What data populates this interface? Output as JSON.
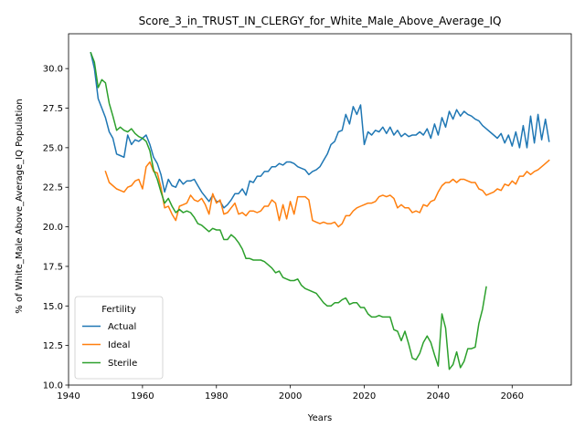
{
  "chart_data": {
    "type": "line",
    "title": "Score_3_in_TRUST_IN_CLERGY_for_White_Male_Above_Average_IQ",
    "xlabel": "Years",
    "ylabel": "% of White_Male Above_Average_IQ Population",
    "xlim": [
      1940,
      2076
    ],
    "ylim": [
      10,
      32.2
    ],
    "xticks": [
      1940,
      1960,
      1980,
      2000,
      2020,
      2040,
      2060
    ],
    "yticks": [
      10.0,
      12.5,
      15.0,
      17.5,
      20.0,
      22.5,
      25.0,
      27.5,
      30.0
    ],
    "grid": false,
    "legend": {
      "title": "Fertility",
      "placement": "bottom-left"
    },
    "series": [
      {
        "name": "Actual",
        "color": "#1f77b4",
        "x": [
          1946,
          1947,
          1948,
          1949,
          1950,
          1951,
          1952,
          1953,
          1954,
          1955,
          1956,
          1957,
          1958,
          1959,
          1960,
          1961,
          1962,
          1963,
          1964,
          1965,
          1966,
          1967,
          1968,
          1969,
          1970,
          1971,
          1972,
          1973,
          1974,
          1975,
          1976,
          1977,
          1978,
          1979,
          1980,
          1981,
          1982,
          1983,
          1984,
          1985,
          1986,
          1987,
          1988,
          1989,
          1990,
          1991,
          1992,
          1993,
          1994,
          1995,
          1996,
          1997,
          1998,
          1999,
          2000,
          2001,
          2002,
          2003,
          2004,
          2005,
          2006,
          2007,
          2008,
          2009,
          2010,
          2011,
          2012,
          2013,
          2014,
          2015,
          2016,
          2017,
          2018,
          2019,
          2020,
          2021,
          2022,
          2023,
          2024,
          2025,
          2026,
          2027,
          2028,
          2029,
          2030,
          2031,
          2032,
          2033,
          2034,
          2035,
          2036,
          2037,
          2038,
          2039,
          2040,
          2041,
          2042,
          2043,
          2044,
          2045,
          2046,
          2047,
          2048,
          2049,
          2050,
          2051,
          2052,
          2053,
          2054,
          2055,
          2056,
          2057,
          2058,
          2059,
          2060,
          2061,
          2062,
          2063,
          2064,
          2065,
          2066,
          2067,
          2068,
          2069,
          2070
        ],
        "y": [
          31.0,
          30.0,
          28.1,
          27.5,
          26.9,
          26.0,
          25.6,
          24.6,
          24.5,
          24.4,
          25.8,
          25.2,
          25.5,
          25.4,
          25.6,
          25.8,
          25.2,
          24.4,
          24.0,
          23.3,
          22.2,
          23.0,
          22.6,
          22.5,
          23.0,
          22.7,
          22.9,
          22.9,
          23.0,
          22.6,
          22.2,
          21.9,
          21.6,
          22.0,
          21.6,
          21.6,
          21.2,
          21.4,
          21.7,
          22.1,
          22.1,
          22.4,
          22.0,
          22.9,
          22.8,
          23.2,
          23.2,
          23.5,
          23.5,
          23.8,
          23.8,
          24.0,
          23.9,
          24.1,
          24.1,
          24.0,
          23.8,
          23.7,
          23.6,
          23.3,
          23.5,
          23.6,
          23.8,
          24.2,
          24.6,
          25.2,
          25.4,
          26.0,
          26.1,
          27.1,
          26.5,
          27.6,
          27.1,
          27.7,
          25.2,
          26.0,
          25.8,
          26.1,
          26.0,
          26.3,
          25.9,
          26.3,
          25.8,
          26.1,
          25.7,
          25.9,
          25.7,
          25.8,
          25.8,
          26.0,
          25.8,
          26.2,
          25.6,
          26.5,
          25.8,
          26.9,
          26.3,
          27.3,
          26.8,
          27.4,
          27.0,
          27.3,
          27.1,
          27.0,
          26.8,
          26.7,
          26.4,
          26.2,
          26.0,
          25.8,
          25.6,
          25.9,
          25.3,
          25.8,
          25.1,
          26.0,
          25.0,
          26.4,
          25.0,
          27.0,
          25.3,
          27.1,
          25.5,
          26.8,
          25.4
        ],
        "note_drop": null
      },
      {
        "name": "Ideal",
        "color": "#ff7f0e",
        "x": [
          1950,
          1951,
          1952,
          1953,
          1954,
          1955,
          1956,
          1957,
          1958,
          1959,
          1960,
          1961,
          1962,
          1963,
          1964,
          1965,
          1966,
          1967,
          1968,
          1969,
          1970,
          1971,
          1972,
          1973,
          1974,
          1975,
          1976,
          1977,
          1978,
          1979,
          1980,
          1981,
          1982,
          1983,
          1984,
          1985,
          1986,
          1987,
          1988,
          1989,
          1990,
          1991,
          1992,
          1993,
          1994,
          1995,
          1996,
          1997,
          1998,
          1999,
          2000,
          2001,
          2002,
          2003,
          2004,
          2005,
          2006,
          2007,
          2008,
          2009,
          2010,
          2011,
          2012,
          2013,
          2014,
          2015,
          2016,
          2017,
          2018,
          2019,
          2020,
          2021,
          2022,
          2023,
          2024,
          2025,
          2026,
          2027,
          2028,
          2029,
          2030,
          2031,
          2032,
          2033,
          2034,
          2035,
          2036,
          2037,
          2038,
          2039,
          2040,
          2041,
          2042,
          2043,
          2044,
          2045,
          2046,
          2047,
          2048,
          2049,
          2050,
          2051,
          2052,
          2053,
          2054,
          2055,
          2056,
          2057,
          2058,
          2059,
          2060,
          2061,
          2062,
          2063,
          2064,
          2065,
          2066,
          2067,
          2068,
          2069,
          2070
        ],
        "y": [
          23.5,
          22.8,
          22.6,
          22.4,
          22.3,
          22.2,
          22.5,
          22.6,
          22.9,
          23.0,
          22.4,
          23.8,
          24.1,
          23.5,
          23.4,
          22.5,
          21.2,
          21.3,
          20.8,
          20.4,
          21.3,
          21.4,
          21.5,
          22.0,
          21.7,
          21.6,
          21.8,
          21.4,
          20.8,
          22.1,
          21.5,
          21.7,
          20.8,
          20.9,
          21.2,
          21.5,
          20.8,
          20.9,
          20.7,
          21.0,
          21.0,
          20.9,
          21.0,
          21.3,
          21.3,
          21.7,
          21.5,
          20.4,
          21.4,
          20.5,
          21.6,
          20.8,
          21.9,
          21.9,
          21.9,
          21.7,
          20.4,
          20.3,
          20.2,
          20.3,
          20.2,
          20.2,
          20.3,
          20.0,
          20.2,
          20.7,
          20.7,
          21.0,
          21.2,
          21.3,
          21.4,
          21.5,
          21.5,
          21.6,
          21.9,
          22.0,
          21.9,
          22.0,
          21.8,
          21.2,
          21.4,
          21.2,
          21.2,
          20.9,
          21.0,
          20.9,
          21.4,
          21.3,
          21.6,
          21.7,
          22.2,
          22.6,
          22.8,
          22.8,
          23.0,
          22.8,
          23.0,
          23.0,
          22.9,
          22.8,
          22.8,
          22.4,
          22.3,
          22.0,
          22.1,
          22.2,
          22.4,
          22.3,
          22.7,
          22.6,
          22.9,
          22.7,
          23.2,
          23.2,
          23.5,
          23.3,
          23.5,
          23.6,
          23.8,
          24.0,
          24.2
        ],
        "note_drop": null
      },
      {
        "name": "Sterile",
        "color": "#2ca02c",
        "x": [
          1946,
          1947,
          1948,
          1949,
          1950,
          1951,
          1952,
          1953,
          1954,
          1955,
          1956,
          1957,
          1958,
          1959,
          1960,
          1961,
          1962,
          1963,
          1964,
          1965,
          1966,
          1967,
          1968,
          1969,
          1970,
          1971,
          1972,
          1973,
          1974,
          1975,
          1976,
          1977,
          1978,
          1979,
          1980,
          1981,
          1982,
          1983,
          1984,
          1985,
          1986,
          1987,
          1988,
          1989,
          1990,
          1991,
          1992,
          1993,
          1994,
          1995,
          1996,
          1997,
          1998,
          1999,
          2000,
          2001,
          2002,
          2003,
          2004,
          2005,
          2006,
          2007,
          2008,
          2009,
          2010,
          2011,
          2012,
          2013,
          2014,
          2015,
          2016,
          2017,
          2018,
          2019,
          2020,
          2021,
          2022,
          2023,
          2024,
          2025,
          2026,
          2027,
          2028,
          2029,
          2030,
          2031,
          2032,
          2033,
          2034,
          2035,
          2036,
          2037,
          2038,
          2039,
          2040,
          2041,
          2042,
          2043,
          2044,
          2045,
          2046,
          2047,
          2048,
          2049,
          2050,
          2051,
          2052,
          2053
        ],
        "y": [
          31.0,
          30.4,
          28.8,
          29.3,
          29.1,
          27.8,
          27.0,
          26.1,
          26.3,
          26.1,
          26.0,
          26.2,
          25.9,
          25.7,
          25.6,
          25.4,
          24.8,
          23.6,
          23.0,
          22.2,
          21.5,
          21.8,
          21.3,
          20.9,
          21.1,
          20.9,
          21.0,
          20.9,
          20.6,
          20.2,
          20.1,
          19.9,
          19.7,
          19.9,
          19.8,
          19.8,
          19.2,
          19.2,
          19.5,
          19.3,
          19.0,
          18.6,
          18.0,
          18.0,
          17.9,
          17.9,
          17.9,
          17.8,
          17.6,
          17.4,
          17.1,
          17.2,
          16.8,
          16.7,
          16.6,
          16.6,
          16.7,
          16.3,
          16.1,
          16.0,
          15.9,
          15.8,
          15.5,
          15.2,
          15.0,
          15.0,
          15.2,
          15.2,
          15.4,
          15.5,
          15.1,
          15.2,
          15.2,
          14.9,
          14.9,
          14.5,
          14.3,
          14.3,
          14.4,
          14.3,
          14.3,
          14.3,
          13.5,
          13.4,
          12.8,
          13.4,
          12.6,
          11.7,
          11.6,
          12.0,
          12.7,
          13.1,
          12.7,
          11.9,
          11.2,
          14.5,
          13.6,
          11.0,
          11.3,
          12.1,
          11.1,
          11.5,
          12.3,
          12.3,
          12.4,
          13.9,
          14.8,
          16.2
        ],
        "note_drop": null
      }
    ]
  }
}
